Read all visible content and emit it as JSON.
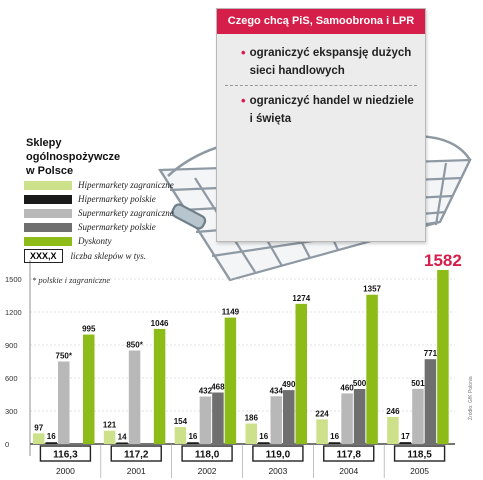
{
  "card": {
    "title": "Czego chcą PiS, Samoobrona i LPR",
    "items": [
      {
        "bullet": "•",
        "text": "ograniczyć ekspansję dużych sieci handlowych"
      },
      {
        "bullet": "•",
        "text": "ograniczyć handel w niedziele i święta"
      }
    ]
  },
  "legend": {
    "title_lines": [
      "Sklepy",
      "ogólnospożywcze",
      "w Polsce"
    ],
    "entries": [
      {
        "label": "Hipermarkety zagraniczne",
        "color": "#cde08a"
      },
      {
        "label": "Hipermarkety polskie",
        "color": "#1a1a1a"
      },
      {
        "label": "Supermarkety zagraniczne",
        "color": "#b8b8b8"
      },
      {
        "label": "Supermarkety polskie",
        "color": "#6f6f6f"
      },
      {
        "label": "Dyskonty",
        "color": "#8dbb18"
      }
    ],
    "box_sample": "XXX,X",
    "box_label": "liczba sklepów w tys."
  },
  "footnote": "* polskie i zagraniczne",
  "credit": "Źródło: GfK Polonia",
  "colors": {
    "accent": "#d51f4a",
    "dyskonty": "#8dbb18",
    "highlight_value": "#d51f4a",
    "axis": "#333333"
  },
  "chart_data": {
    "type": "bar",
    "categories": [
      "2000",
      "2001",
      "2002",
      "2003",
      "2004",
      "2005"
    ],
    "ylim": [
      0,
      1600
    ],
    "yticks": [
      0,
      300,
      600,
      900,
      1200,
      1500
    ],
    "series": [
      {
        "name": "Hipermarkety zagraniczne",
        "values": [
          97,
          121,
          154,
          186,
          224,
          246
        ],
        "labels": [
          "97",
          "121",
          "154",
          "186",
          "224",
          "246"
        ]
      },
      {
        "name": "Hipermarkety polskie",
        "values": [
          16,
          14,
          16,
          16,
          16,
          17
        ],
        "labels": [
          "16",
          "14",
          "16",
          "16",
          "16",
          "17"
        ]
      },
      {
        "name": "Supermarkety zagraniczne",
        "values": [
          750,
          850,
          432,
          434,
          460,
          501
        ],
        "labels": [
          "750*",
          "850*",
          "432",
          "434",
          "460",
          "501"
        ]
      },
      {
        "name": "Supermarkety polskie",
        "values": [
          null,
          null,
          468,
          490,
          500,
          771
        ],
        "labels": [
          "",
          "",
          "468",
          "490",
          "500",
          "771"
        ]
      },
      {
        "name": "Dyskonty",
        "values": [
          995,
          1046,
          1149,
          1274,
          1357,
          1582
        ],
        "labels": [
          "995",
          "1046",
          "1149",
          "1274",
          "1357",
          "1582"
        ]
      }
    ],
    "store_counts": [
      "116,3",
      "117,2",
      "118,0",
      "119,0",
      "117,8",
      "118,5"
    ],
    "highlight": "1582"
  }
}
